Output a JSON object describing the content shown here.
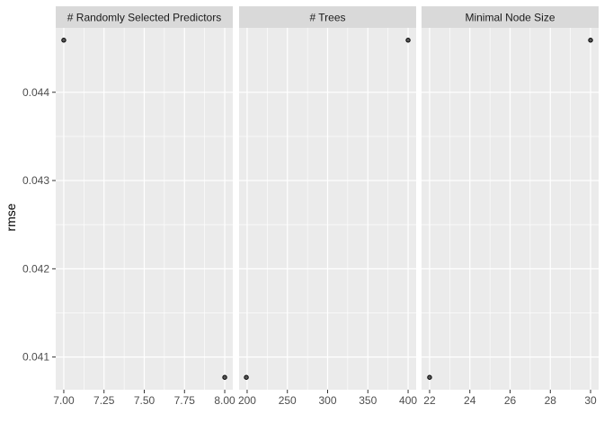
{
  "chart_data": {
    "type": "scatter",
    "ylabel": "rmse",
    "y_ticks": [
      "0.041",
      "0.042",
      "0.043",
      "0.044"
    ],
    "y_tick_values": [
      0.041,
      0.042,
      0.043,
      0.044
    ],
    "ylim": [
      0.04063,
      0.04473
    ],
    "grid": true,
    "colors": {
      "panel_bg": "#ebebeb",
      "strip_bg": "#d9d9d9",
      "grid": "#ffffff",
      "point_fill": "#595959",
      "point_stroke": "#000000"
    },
    "panels": [
      {
        "title": "# Randomly Selected Predictors",
        "xlim": [
          6.95,
          8.05
        ],
        "x_ticks": [
          "7.00",
          "7.25",
          "7.50",
          "7.75",
          "8.00"
        ],
        "x_tick_values": [
          7.0,
          7.25,
          7.5,
          7.75,
          8.0
        ],
        "x_minor": [
          7.125,
          7.375,
          7.625,
          7.875
        ],
        "points": [
          {
            "x": 7,
            "y": 0.04459
          },
          {
            "x": 8,
            "y": 0.04077
          }
        ]
      },
      {
        "title": "# Trees",
        "xlim": [
          190,
          410
        ],
        "x_ticks": [
          "200",
          "250",
          "300",
          "350",
          "400"
        ],
        "x_tick_values": [
          200,
          250,
          300,
          350,
          400
        ],
        "x_minor": [
          225,
          275,
          325,
          375
        ],
        "points": [
          {
            "x": 400,
            "y": 0.04459
          },
          {
            "x": 199,
            "y": 0.04077
          }
        ]
      },
      {
        "title": "Minimal Node Size",
        "xlim": [
          21.6,
          30.4
        ],
        "x_ticks": [
          "22",
          "24",
          "26",
          "28",
          "30"
        ],
        "x_tick_values": [
          22,
          24,
          26,
          28,
          30
        ],
        "x_minor": [
          23,
          25,
          27,
          29
        ],
        "points": [
          {
            "x": 30,
            "y": 0.04459
          },
          {
            "x": 22,
            "y": 0.04077
          }
        ]
      }
    ]
  }
}
